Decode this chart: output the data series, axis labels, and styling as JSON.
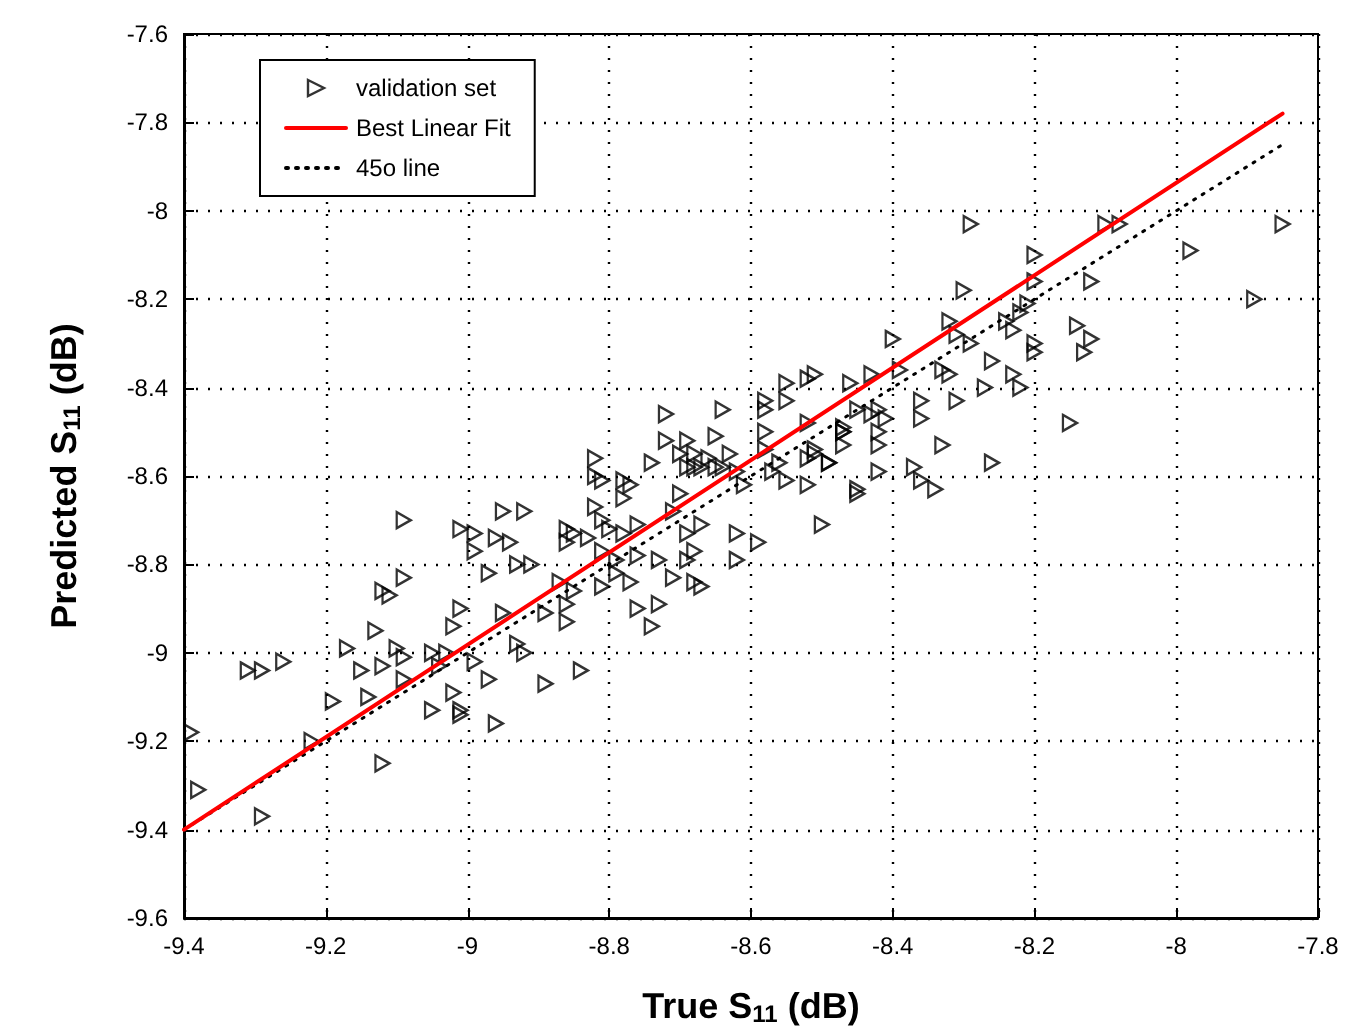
{
  "chart_data": {
    "type": "scatter",
    "xlabel": "True S$_{11}$ (dB)",
    "ylabel": "Predicted S$_{11}$ (dB)",
    "xlim": [
      -9.4,
      -7.8
    ],
    "xticks": [
      -9.4,
      -9.2,
      -9,
      -8.8,
      -8.6,
      -8.4,
      -8.2,
      -8,
      -7.8
    ],
    "ylim": [
      -9.6,
      -7.6
    ],
    "yticks": [
      -9.6,
      -9.4,
      -9.2,
      -9,
      -8.8,
      -8.6,
      -8.4,
      -8.2,
      -8,
      -7.8,
      -7.6
    ],
    "grid": true,
    "legend": "top left",
    "series": [
      {
        "name": "45o line",
        "type": "line",
        "color": "#000000",
        "line_style": "dotted",
        "marker": "none",
        "x": [
          -9.4,
          -7.85
        ],
        "values": [
          -9.4,
          -7.85
        ]
      },
      {
        "name": "validation set",
        "type": "scatter",
        "color": "#000000",
        "marker": "triangle",
        "x": [
          -9.39,
          -9.38,
          -9.29,
          -9.31,
          -9.29,
          -9.26,
          -9.22,
          -9.19,
          -9.17,
          -9.15,
          -9.14,
          -9.12,
          -9.12,
          -9.13,
          -9.12,
          -9.11,
          -9.09,
          -9.09,
          -9.1,
          -9.09,
          -9.09,
          -9.05,
          -9.05,
          -9.03,
          -9.04,
          -9.02,
          -9.01,
          -9.01,
          -8.99,
          -8.97,
          -8.96,
          -9.01,
          -9.02,
          -8.95,
          -9.01,
          -8.99,
          -8.99,
          -8.96,
          -8.94,
          -8.95,
          -8.92,
          -8.97,
          -8.93,
          -8.91,
          -8.93,
          -8.92,
          -8.89,
          -8.89,
          -8.87,
          -8.86,
          -8.86,
          -8.85,
          -8.84,
          -8.86,
          -8.85,
          -8.86,
          -8.83,
          -8.81,
          -8.81,
          -8.82,
          -8.82,
          -8.82,
          -8.81,
          -8.8,
          -8.78,
          -8.79,
          -8.79,
          -8.81,
          -8.78,
          -8.78,
          -8.77,
          -8.76,
          -8.77,
          -8.76,
          -8.73,
          -8.76,
          -8.74,
          -8.73,
          -8.71,
          -8.74,
          -8.72,
          -8.7,
          -8.71,
          -8.69,
          -8.67,
          -8.68,
          -8.69,
          -8.68,
          -8.67,
          -8.72,
          -8.7,
          -8.69,
          -8.69,
          -8.68,
          -8.68,
          -8.67,
          -8.66,
          -8.65,
          -8.65,
          -8.64,
          -8.64,
          -8.63,
          -8.62,
          -8.61,
          -8.62,
          -8.59,
          -8.62,
          -8.58,
          -8.58,
          -8.58,
          -8.58,
          -8.56,
          -8.57,
          -8.55,
          -8.55,
          -8.55,
          -8.51,
          -8.52,
          -8.51,
          -8.52,
          -8.52,
          -8.5,
          -8.49,
          -8.47,
          -8.46,
          -8.45,
          -8.29,
          -8.3,
          -8.2,
          -8.2,
          -8.21,
          -8.12,
          -8.1,
          -8.08,
          -8.32,
          -8.31,
          -8.29,
          -8.4,
          -8.39,
          -8.33,
          -8.32,
          -8.31,
          -8.27,
          -8.26,
          -8.23,
          -8.22,
          -8.24,
          -8.23,
          -8.22,
          -8.2,
          -8.2,
          -8.14,
          -8.12,
          -8.13,
          -8.15,
          -8.36,
          -8.36,
          -8.33,
          -8.26,
          -8.37,
          -8.36,
          -8.34,
          -8.42,
          -8.45,
          -8.42,
          -8.41,
          -8.42,
          -8.42,
          -8.43,
          -8.45,
          -8.43,
          -8.47,
          -8.47,
          -8.47,
          -8.49,
          -8.51,
          -8.52,
          -7.85,
          -7.98,
          -7.89
        ],
        "values": [
          -9.18,
          -9.31,
          -9.37,
          -9.04,
          -9.04,
          -9.02,
          -9.2,
          -9.11,
          -8.99,
          -9.04,
          -9.1,
          -9.25,
          -9.03,
          -8.95,
          -8.86,
          -8.87,
          -8.83,
          -8.7,
          -8.99,
          -9.01,
          -9.06,
          -9.13,
          -9,
          -9,
          -9.03,
          -9.09,
          -9.13,
          -9.14,
          -9.02,
          -9.06,
          -9.16,
          -8.9,
          -8.94,
          -8.91,
          -8.72,
          -8.73,
          -8.77,
          -8.74,
          -8.75,
          -8.68,
          -8.68,
          -8.82,
          -8.8,
          -8.8,
          -8.98,
          -9,
          -9.07,
          -8.91,
          -8.84,
          -8.89,
          -8.93,
          -8.86,
          -9.04,
          -8.72,
          -8.73,
          -8.75,
          -8.74,
          -8.7,
          -8.77,
          -8.67,
          -8.6,
          -8.56,
          -8.61,
          -8.72,
          -8.73,
          -8.79,
          -8.82,
          -8.85,
          -8.61,
          -8.65,
          -8.62,
          -8.71,
          -8.84,
          -8.78,
          -8.79,
          -8.9,
          -8.94,
          -8.89,
          -8.83,
          -8.57,
          -8.52,
          -8.64,
          -8.68,
          -8.73,
          -8.71,
          -8.77,
          -8.79,
          -8.84,
          -8.85,
          -8.46,
          -8.55,
          -8.58,
          -8.52,
          -8.55,
          -8.58,
          -8.58,
          -8.56,
          -8.51,
          -8.58,
          -8.58,
          -8.45,
          -8.55,
          -8.59,
          -8.62,
          -8.73,
          -8.75,
          -8.79,
          -8.43,
          -8.45,
          -8.5,
          -8.54,
          -8.57,
          -8.59,
          -8.61,
          -8.43,
          -8.39,
          -8.37,
          -8.48,
          -8.54,
          -8.56,
          -8.62,
          -8.71,
          -8.57,
          -8.5,
          -8.39,
          -8.64,
          -8.03,
          -8.18,
          -8.1,
          -8.16,
          -8.21,
          -8.16,
          -8.03,
          -8.03,
          -8.25,
          -8.28,
          -8.3,
          -8.29,
          -8.36,
          -8.36,
          -8.37,
          -8.43,
          -8.4,
          -8.34,
          -8.37,
          -8.4,
          -8.25,
          -8.27,
          -8.23,
          -8.3,
          -8.32,
          -8.26,
          -8.29,
          -8.32,
          -8.48,
          -8.43,
          -8.47,
          -8.53,
          -8.57,
          -8.58,
          -8.61,
          -8.63,
          -8.59,
          -8.63,
          -8.45,
          -8.47,
          -8.5,
          -8.53,
          -8.46,
          -8.45,
          -8.37,
          -8.49,
          -8.5,
          -8.53,
          -8.57,
          -8.55,
          -8.38,
          -8.03,
          -8.09,
          -8.2
        ]
      },
      {
        "name": "Best Linear Fit",
        "type": "line",
        "color": "#ff0000",
        "line_style": "solid",
        "marker": "none",
        "x": [
          -9.4,
          -7.85
        ],
        "values": [
          -9.4,
          -7.78
        ]
      }
    ]
  }
}
